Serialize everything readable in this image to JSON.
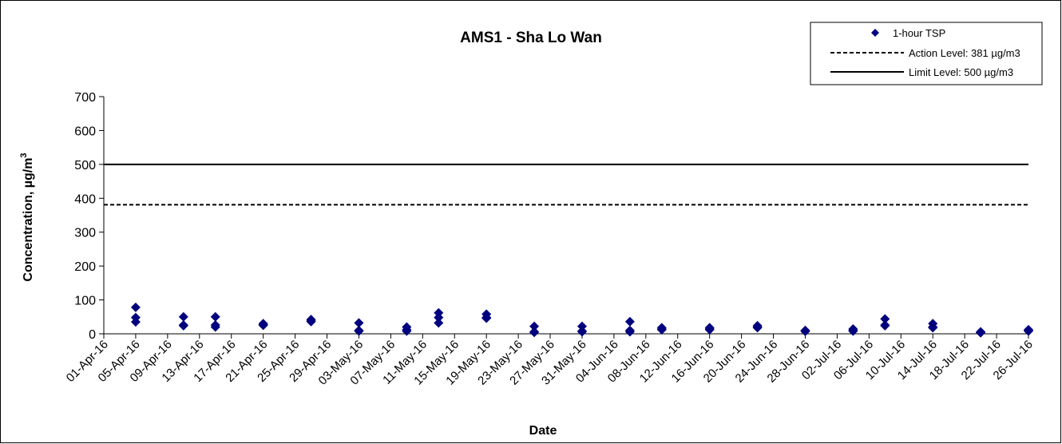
{
  "chart_data": {
    "type": "scatter",
    "title": "AMS1 - Sha Lo Wan",
    "xlabel": "Date",
    "ylabel_main": "Concentration, µg/m",
    "ylabel_sup": "3",
    "ylim": [
      0,
      700
    ],
    "yticks": [
      0,
      100,
      200,
      300,
      400,
      500,
      600,
      700
    ],
    "xlim": [
      "2016-04-01",
      "2016-07-26"
    ],
    "xtick_labels": [
      "01-Apr-16",
      "05-Apr-16",
      "09-Apr-16",
      "13-Apr-16",
      "17-Apr-16",
      "21-Apr-16",
      "25-Apr-16",
      "29-Apr-16",
      "03-May-16",
      "07-May-16",
      "11-May-16",
      "15-May-16",
      "19-May-16",
      "23-May-16",
      "27-May-16",
      "31-May-16",
      "04-Jun-16",
      "08-Jun-16",
      "12-Jun-16",
      "16-Jun-16",
      "20-Jun-16",
      "24-Jun-16",
      "28-Jun-16",
      "02-Jul-16",
      "06-Jul-16",
      "10-Jul-16",
      "14-Jul-16",
      "18-Jul-16",
      "22-Jul-16",
      "26-Jul-16"
    ],
    "legend_position": "top-right",
    "grid": false,
    "series": [
      {
        "name": "1-hour TSP",
        "kind": "points",
        "marker": "diamond",
        "color": "#00007f",
        "points": [
          [
            "2016-04-05",
            78
          ],
          [
            "2016-04-05",
            48
          ],
          [
            "2016-04-05",
            35
          ],
          [
            "2016-04-11",
            50
          ],
          [
            "2016-04-11",
            26
          ],
          [
            "2016-04-11",
            24
          ],
          [
            "2016-04-15",
            50
          ],
          [
            "2016-04-15",
            26
          ],
          [
            "2016-04-15",
            20
          ],
          [
            "2016-04-21",
            30
          ],
          [
            "2016-04-21",
            27
          ],
          [
            "2016-04-21",
            25
          ],
          [
            "2016-04-27",
            42
          ],
          [
            "2016-04-27",
            38
          ],
          [
            "2016-04-27",
            36
          ],
          [
            "2016-05-03",
            32
          ],
          [
            "2016-05-03",
            10
          ],
          [
            "2016-05-03",
            8
          ],
          [
            "2016-05-09",
            20
          ],
          [
            "2016-05-09",
            12
          ],
          [
            "2016-05-09",
            8
          ],
          [
            "2016-05-13",
            62
          ],
          [
            "2016-05-13",
            48
          ],
          [
            "2016-05-13",
            32
          ],
          [
            "2016-05-19",
            58
          ],
          [
            "2016-05-19",
            48
          ],
          [
            "2016-05-19",
            46
          ],
          [
            "2016-05-25",
            22
          ],
          [
            "2016-05-25",
            6
          ],
          [
            "2016-05-25",
            4
          ],
          [
            "2016-05-31",
            22
          ],
          [
            "2016-05-31",
            8
          ],
          [
            "2016-05-31",
            6
          ],
          [
            "2016-06-06",
            36
          ],
          [
            "2016-06-06",
            10
          ],
          [
            "2016-06-06",
            6
          ],
          [
            "2016-06-10",
            18
          ],
          [
            "2016-06-10",
            14
          ],
          [
            "2016-06-10",
            12
          ],
          [
            "2016-06-16",
            18
          ],
          [
            "2016-06-16",
            14
          ],
          [
            "2016-06-16",
            12
          ],
          [
            "2016-06-22",
            24
          ],
          [
            "2016-06-22",
            20
          ],
          [
            "2016-06-22",
            18
          ],
          [
            "2016-06-28",
            10
          ],
          [
            "2016-06-28",
            8
          ],
          [
            "2016-06-28",
            7
          ],
          [
            "2016-07-04",
            14
          ],
          [
            "2016-07-04",
            10
          ],
          [
            "2016-07-04",
            8
          ],
          [
            "2016-07-08",
            44
          ],
          [
            "2016-07-08",
            26
          ],
          [
            "2016-07-08",
            24
          ],
          [
            "2016-07-14",
            30
          ],
          [
            "2016-07-14",
            20
          ],
          [
            "2016-07-14",
            18
          ],
          [
            "2016-07-20",
            6
          ],
          [
            "2016-07-20",
            4
          ],
          [
            "2016-07-20",
            3
          ],
          [
            "2016-07-26",
            12
          ],
          [
            "2016-07-26",
            10
          ],
          [
            "2016-07-26",
            8
          ]
        ]
      },
      {
        "name": "Action Level: 381 µg/m3",
        "kind": "hline",
        "style": "dashed",
        "color": "#000000",
        "value": 381
      },
      {
        "name": "Limit Level: 500 µg/m3",
        "kind": "hline",
        "style": "solid",
        "color": "#000000",
        "value": 500
      }
    ]
  }
}
